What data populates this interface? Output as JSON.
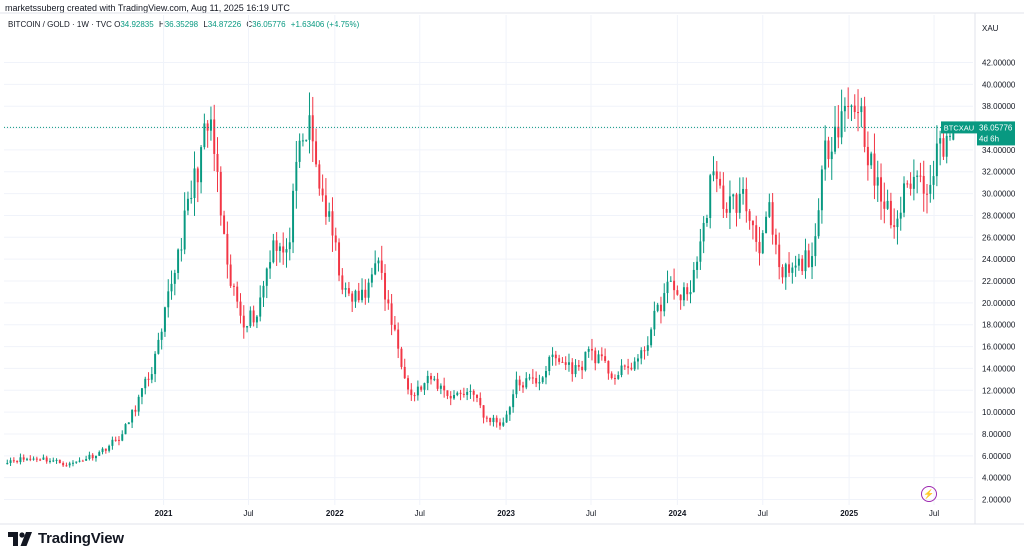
{
  "header": {
    "credit": "marketssuberg created with TradingView.com, Aug 11, 2025 16:19 UTC",
    "symbol": "BITCOIN / GOLD · 1W · TVC",
    "ohlc": {
      "o_label": "O",
      "o_value": "34.92835",
      "h_label": "H",
      "h_value": "36.35298",
      "l_label": "L",
      "l_value": "34.87226",
      "c_label": "C",
      "c_value": "36.05776",
      "change": "+1.63406 (+4.75%)"
    }
  },
  "price_axis": {
    "currency": "XAU",
    "ticks": [
      "42.00000",
      "40.00000",
      "38.00000",
      "36.00000",
      "34.00000",
      "32.00000",
      "30.00000",
      "28.00000",
      "26.00000",
      "24.00000",
      "22.00000",
      "20.00000",
      "18.00000",
      "16.00000",
      "14.00000",
      "12.00000",
      "10.00000",
      "8.00000",
      "6.00000",
      "4.00000",
      "2.00000"
    ]
  },
  "time_axis": {
    "ticks": [
      "2021",
      "Jul",
      "2022",
      "Jul",
      "2023",
      "Jul",
      "2024",
      "Jul",
      "2025",
      "Jul"
    ]
  },
  "price_label": {
    "ticker": "BTCXAU",
    "last": "36.05776",
    "countdown": "4d 6h"
  },
  "brand": {
    "name": "TradingView"
  },
  "colors": {
    "up": "#089981",
    "down": "#f23645",
    "last_line": "#089981",
    "grid": "#f0f3fa",
    "axis_text": "#131722"
  },
  "chart_data": {
    "type": "candlestick",
    "title": "BITCOIN / GOLD · 1W · TVC",
    "ylabel": "XAU",
    "ylim": [
      1.5,
      43.6
    ],
    "xlim": [
      "2020-01-27",
      "2025-09-22"
    ],
    "last_price": 36.05776,
    "grid": true,
    "series": [
      {
        "name": "BTCXAU",
        "x": "2020-02-03",
        "y": 5.6
      },
      {
        "name": "BTCXAU",
        "x": "2020-04-13",
        "y": 5.8
      },
      {
        "name": "BTCXAU",
        "x": "2020-06-15",
        "y": 5.2
      },
      {
        "name": "BTCXAU",
        "x": "2020-08-17",
        "y": 6.3
      },
      {
        "name": "BTCXAU",
        "x": "2020-10-05",
        "y": 7.9
      },
      {
        "name": "BTCXAU",
        "x": "2020-11-02",
        "y": 10.5
      },
      {
        "name": "BTCXAU",
        "x": "2020-12-07",
        "y": 13.9
      },
      {
        "name": "BTCXAU",
        "x": "2020-12-28",
        "y": 17.0
      },
      {
        "name": "BTCXAU",
        "x": "2021-01-11",
        "y": 20.5
      },
      {
        "name": "BTCXAU",
        "x": "2021-02-08",
        "y": 26.0
      },
      {
        "name": "BTCXAU",
        "x": "2021-03-01",
        "y": 30.0
      },
      {
        "name": "BTCXAU",
        "x": "2021-03-29",
        "y": 35.0
      },
      {
        "name": "BTCXAU",
        "x": "2021-04-12",
        "y": 36.2
      },
      {
        "name": "BTCXAU",
        "x": "2021-04-26",
        "y": 31.0
      },
      {
        "name": "BTCXAU",
        "x": "2021-05-17",
        "y": 22.5
      },
      {
        "name": "BTCXAU",
        "x": "2021-06-21",
        "y": 18.5
      },
      {
        "name": "BTCXAU",
        "x": "2021-07-19",
        "y": 19.0
      },
      {
        "name": "BTCXAU",
        "x": "2021-08-23",
        "y": 26.0
      },
      {
        "name": "BTCXAU",
        "x": "2021-09-20",
        "y": 24.0
      },
      {
        "name": "BTCXAU",
        "x": "2021-10-18",
        "y": 34.0
      },
      {
        "name": "BTCXAU",
        "x": "2021-11-08",
        "y": 36.0
      },
      {
        "name": "BTCXAU",
        "x": "2021-11-29",
        "y": 31.0
      },
      {
        "name": "BTCXAU",
        "x": "2021-12-27",
        "y": 26.0
      },
      {
        "name": "BTCXAU",
        "x": "2022-01-24",
        "y": 20.5
      },
      {
        "name": "BTCXAU",
        "x": "2022-03-07",
        "y": 20.5
      },
      {
        "name": "BTCXAU",
        "x": "2022-03-28",
        "y": 24.5
      },
      {
        "name": "BTCXAU",
        "x": "2022-05-09",
        "y": 17.0
      },
      {
        "name": "BTCXAU",
        "x": "2022-06-13",
        "y": 11.5
      },
      {
        "name": "BTCXAU",
        "x": "2022-07-25",
        "y": 13.0
      },
      {
        "name": "BTCXAU",
        "x": "2022-09-05",
        "y": 11.5
      },
      {
        "name": "BTCXAU",
        "x": "2022-10-24",
        "y": 12.0
      },
      {
        "name": "BTCXAU",
        "x": "2022-11-14",
        "y": 9.5
      },
      {
        "name": "BTCXAU",
        "x": "2022-12-26",
        "y": 9.0
      },
      {
        "name": "BTCXAU",
        "x": "2023-01-23",
        "y": 12.5
      },
      {
        "name": "BTCXAU",
        "x": "2023-03-13",
        "y": 13.0
      },
      {
        "name": "BTCXAU",
        "x": "2023-04-10",
        "y": 15.0
      },
      {
        "name": "BTCXAU",
        "x": "2023-06-05",
        "y": 13.8
      },
      {
        "name": "BTCXAU",
        "x": "2023-06-26",
        "y": 15.8
      },
      {
        "name": "BTCXAU",
        "x": "2023-08-21",
        "y": 13.2
      },
      {
        "name": "BTCXAU",
        "x": "2023-10-16",
        "y": 15.0
      },
      {
        "name": "BTCXAU",
        "x": "2023-11-13",
        "y": 18.5
      },
      {
        "name": "BTCXAU",
        "x": "2023-12-11",
        "y": 21.5
      },
      {
        "name": "BTCXAU",
        "x": "2024-01-22",
        "y": 20.5
      },
      {
        "name": "BTCXAU",
        "x": "2024-02-26",
        "y": 26.5
      },
      {
        "name": "BTCXAU",
        "x": "2024-03-11",
        "y": 31.5
      },
      {
        "name": "BTCXAU",
        "x": "2024-04-15",
        "y": 29.0
      },
      {
        "name": "BTCXAU",
        "x": "2024-05-20",
        "y": 29.5
      },
      {
        "name": "BTCXAU",
        "x": "2024-06-24",
        "y": 25.5
      },
      {
        "name": "BTCXAU",
        "x": "2024-07-15",
        "y": 28.0
      },
      {
        "name": "BTCXAU",
        "x": "2024-08-05",
        "y": 22.5
      },
      {
        "name": "BTCXAU",
        "x": "2024-09-09",
        "y": 23.0
      },
      {
        "name": "BTCXAU",
        "x": "2024-10-21",
        "y": 25.0
      },
      {
        "name": "BTCXAU",
        "x": "2024-11-11",
        "y": 34.0
      },
      {
        "name": "BTCXAU",
        "x": "2024-12-16",
        "y": 37.5
      },
      {
        "name": "BTCXAU",
        "x": "2025-01-20",
        "y": 38.5
      },
      {
        "name": "BTCXAU",
        "x": "2025-02-24",
        "y": 31.0
      },
      {
        "name": "BTCXAU",
        "x": "2025-04-07",
        "y": 27.0
      },
      {
        "name": "BTCXAU",
        "x": "2025-05-12",
        "y": 31.5
      },
      {
        "name": "BTCXAU",
        "x": "2025-06-16",
        "y": 31.0
      },
      {
        "name": "BTCXAU",
        "x": "2025-07-14",
        "y": 34.5
      },
      {
        "name": "BTCXAU",
        "x": "2025-08-11",
        "y": 36.06
      }
    ],
    "candles_count": 290
  }
}
